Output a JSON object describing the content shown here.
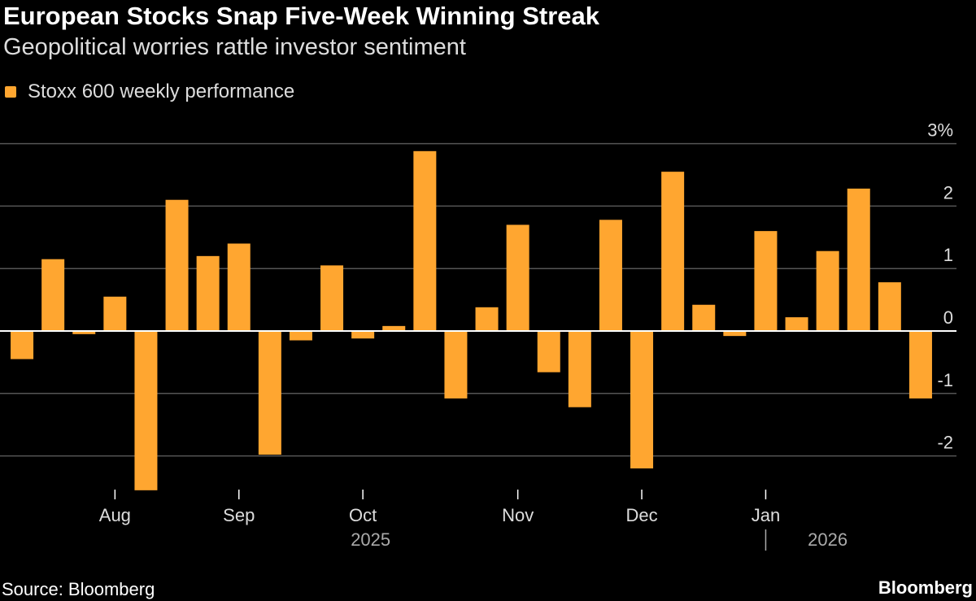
{
  "title": "European Stocks Snap Five-Week Winning Streak",
  "subtitle": "Geopolitical worries rattle investor sentiment",
  "source": "Source: Bloomberg",
  "brand": "Bloomberg",
  "colors": {
    "bar": "#ffa630",
    "background": "#000000",
    "grid": "#555555"
  },
  "chart_data": {
    "type": "bar",
    "series": [
      {
        "name": "Stoxx 600 weekly performance",
        "values": [
          -0.45,
          1.15,
          -0.05,
          0.55,
          -2.55,
          2.1,
          1.2,
          1.4,
          -1.98,
          -0.15,
          1.05,
          -0.12,
          0.08,
          2.88,
          -1.08,
          0.38,
          1.7,
          -0.66,
          -1.22,
          1.78,
          -2.2,
          2.55,
          0.42,
          -0.08,
          1.6,
          0.22,
          1.28,
          2.28,
          0.78,
          -1.08
        ]
      }
    ],
    "ylim": [
      -2.6,
      3.3
    ],
    "y_ticks": [
      {
        "value": 3,
        "label": "3%"
      },
      {
        "value": 2,
        "label": "2"
      },
      {
        "value": 1,
        "label": "1"
      },
      {
        "value": 0,
        "label": "0"
      },
      {
        "value": -1,
        "label": "-1"
      },
      {
        "value": -2,
        "label": "-2"
      }
    ],
    "x_ticks": [
      {
        "label": "Aug",
        "position": 3.5
      },
      {
        "label": "Sep",
        "position": 7.5
      },
      {
        "label": "Oct",
        "position": 11.5
      },
      {
        "label": "Nov",
        "position": 16.5
      },
      {
        "label": "Dec",
        "position": 20.5
      },
      {
        "label": "Jan",
        "position": 24.5
      }
    ],
    "year_labels": [
      {
        "label": "2025",
        "position": 11.75
      },
      {
        "label": "2026",
        "position": 26.5
      }
    ],
    "year_separator_position": 24.5,
    "grid": true,
    "legend_position": "top-left"
  }
}
